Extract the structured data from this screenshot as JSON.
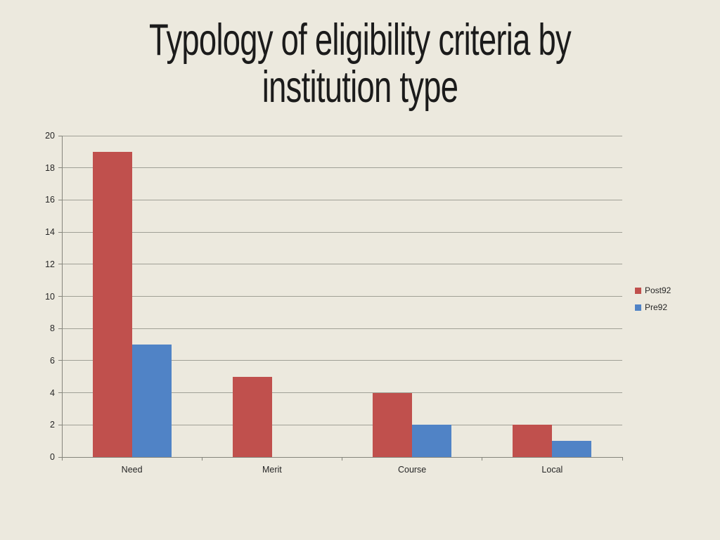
{
  "slide": {
    "background": "#ECE9DE"
  },
  "title": {
    "text": "Typology of eligibility criteria by institution type",
    "line1": "Typology of eligibility criteria by",
    "line2": "institution type",
    "color": "#1b1b1b"
  },
  "chart_data": {
    "type": "bar",
    "categories": [
      "Need",
      "Merit",
      "Course",
      "Local"
    ],
    "series": [
      {
        "name": "Post92",
        "color": "#C0504D",
        "values": [
          19,
          5,
          4,
          2
        ]
      },
      {
        "name": "Pre92",
        "color": "#5083C6",
        "values": [
          7,
          0,
          2,
          1
        ]
      }
    ],
    "title": "Typology of eligibility criteria by institution type",
    "xlabel": "",
    "ylabel": "",
    "ylim": [
      0,
      20
    ],
    "ytick_step": 2,
    "grid": true,
    "legend_position": "right",
    "gridline_color": "#A0A096",
    "axis_color": "#85857C",
    "label_color": "#262626"
  }
}
